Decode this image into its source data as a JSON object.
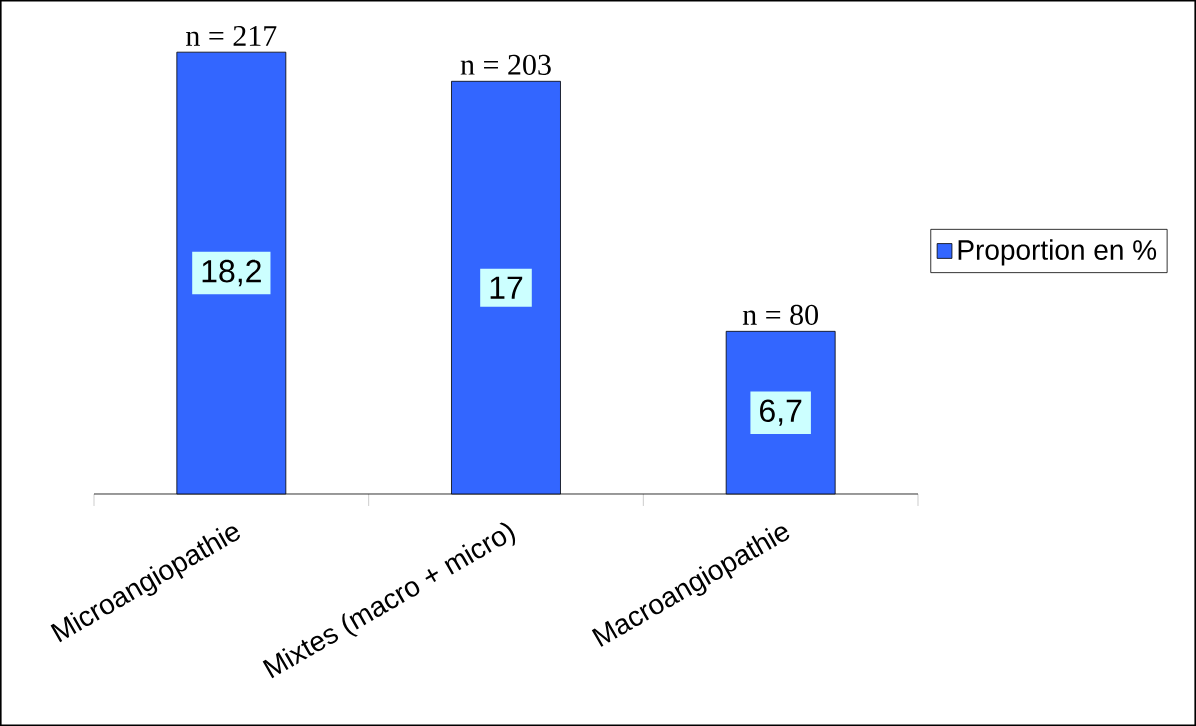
{
  "chart_data": {
    "type": "bar",
    "categories": [
      "Microangiopathie",
      "Mixtes (macro + micro)",
      "Macroangiopathie"
    ],
    "series": [
      {
        "name": "Proportion en %",
        "color": "#3366ff",
        "values": [
          18.2,
          17,
          6.7
        ],
        "value_labels": [
          "18,2",
          "17",
          "6,7"
        ]
      }
    ],
    "annotations": [
      {
        "text": "n = 217",
        "x": "Microangiopathie",
        "y": 18.2
      },
      {
        "text": "n = 203",
        "x": "Mixtes (macro + micro)",
        "y": 17
      },
      {
        "text": "n = 80",
        "x": "Macroangiopathie",
        "y": 6.7
      }
    ],
    "legend": "right"
  }
}
